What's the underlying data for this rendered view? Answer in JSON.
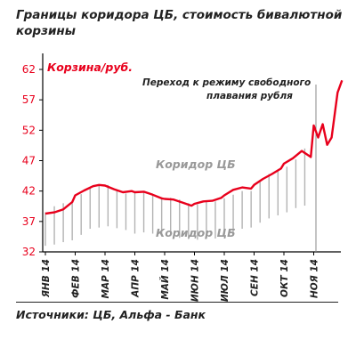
{
  "title": "Границы коридора ЦБ,  стоимость бивалютной корзины",
  "source": "Источники: ЦБ, Альфа - Банк",
  "colors": {
    "basket_line": "#e8001c",
    "corridor": "#b3b3b3",
    "axis": "#000000",
    "text": "#222222"
  },
  "chart_data": {
    "type": "line",
    "ylabel": "Корзина/руб.",
    "ylim": [
      32,
      62
    ],
    "yticks": [
      32,
      37,
      42,
      47,
      52,
      57,
      62
    ],
    "x_ticks": [
      "ЯНВ 14",
      "ФЕВ 14",
      "МАР 14",
      "АПР 14",
      "МАЙ 14",
      "ИЮН 14",
      "ИЮЛ 14",
      "СЕН 14",
      "ОКТ 14",
      "НОЯ 14"
    ],
    "annotations": {
      "regime_change": "Переход к режиму свободного плавания рубля",
      "corridor_upper_label": "Коридор ЦБ",
      "corridor_lower_label": "Коридор ЦБ"
    },
    "series": [
      {
        "x": [
          0,
          0.3,
          0.6,
          0.9,
          1.0,
          1.3,
          1.6,
          1.8,
          2.0,
          2.3,
          2.6,
          2.9,
          3.0,
          3.3,
          3.6,
          3.9,
          4.0,
          4.3,
          4.6,
          4.9,
          5.0,
          5.3,
          5.6,
          5.9,
          6.0,
          6.3,
          6.6,
          6.9,
          7.0,
          7.3,
          7.6,
          7.9,
          8.0,
          8.3,
          8.6,
          8.9,
          9.0,
          9.15,
          9.3,
          9.45,
          9.6,
          9.8,
          9.95
        ],
        "values": [
          38.3,
          38.5,
          39.0,
          40.2,
          41.3,
          42.1,
          42.8,
          43.0,
          42.9,
          42.3,
          41.8,
          42.0,
          41.8,
          41.9,
          41.4,
          40.8,
          40.7,
          40.6,
          40.1,
          39.6,
          39.9,
          40.3,
          40.4,
          40.9,
          41.3,
          42.2,
          42.6,
          42.4,
          43.0,
          44.0,
          44.8,
          45.7,
          46.5,
          47.4,
          48.6,
          47.6,
          52.8,
          50.8,
          53.0,
          49.6,
          50.8,
          58.2,
          60.2
        ]
      }
    ],
    "corridor": {
      "x": [
        0.0,
        0.3,
        0.6,
        0.9,
        1.2,
        1.5,
        1.8,
        2.1,
        2.4,
        2.7,
        3.0,
        3.3,
        3.6,
        3.9,
        4.2,
        4.5,
        4.8,
        5.1,
        5.4,
        5.7,
        6.0,
        6.3,
        6.6,
        6.9,
        7.2,
        7.5,
        7.8,
        8.1,
        8.4,
        8.7
      ],
      "upper": [
        38.5,
        39.5,
        40.0,
        40.3,
        41.5,
        42.6,
        42.9,
        43.0,
        42.0,
        41.6,
        41.8,
        41.8,
        41.4,
        41.0,
        40.9,
        40.6,
        40.0,
        39.8,
        40.2,
        40.3,
        40.8,
        41.4,
        42.0,
        42.0,
        43.5,
        44.8,
        45.4,
        46.0,
        47.2,
        49.0
      ],
      "lower": [
        33.0,
        33.2,
        33.6,
        33.9,
        34.8,
        35.8,
        36.0,
        36.2,
        35.9,
        35.6,
        35.0,
        35.2,
        35.0,
        34.7,
        34.6,
        34.3,
        34.1,
        34.0,
        34.2,
        34.2,
        34.8,
        35.3,
        35.8,
        36.0,
        36.8,
        37.5,
        38.0,
        38.5,
        39.2,
        39.6
      ]
    }
  }
}
